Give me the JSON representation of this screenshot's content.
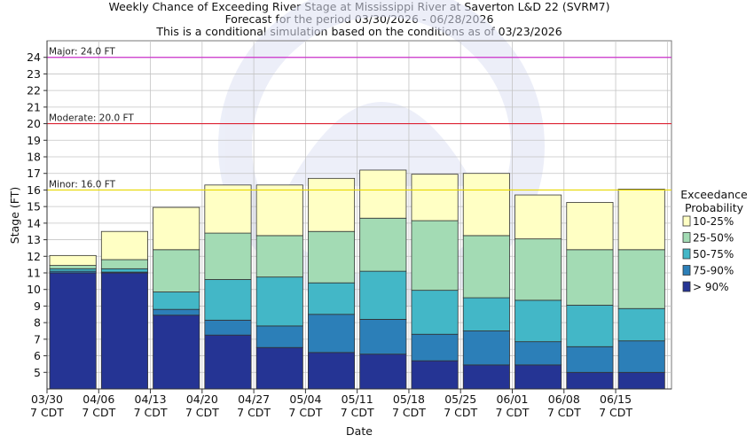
{
  "chart_data": {
    "type": "bar",
    "title": "Weekly Chance of Exceeding River Stage at Mississippi River at Saverton L&D 22 (SVRM7)",
    "subtitle": "Forecast for the period 03/30/2026 - 06/28/2026",
    "subtitle2": "This is a conditional simulation based on the conditions as of 03/23/2026",
    "xlabel": "Date",
    "ylabel": "Stage (FT)",
    "ylim": [
      4,
      25
    ],
    "yticks": [
      5,
      6,
      7,
      8,
      9,
      10,
      11,
      12,
      13,
      14,
      15,
      16,
      17,
      18,
      19,
      20,
      21,
      22,
      23,
      24
    ],
    "xtick_labels": [
      {
        "date": "03/30",
        "tz": "7 CDT"
      },
      {
        "date": "04/06",
        "tz": "7 CDT"
      },
      {
        "date": "04/13",
        "tz": "7 CDT"
      },
      {
        "date": "04/20",
        "tz": "7 CDT"
      },
      {
        "date": "04/27",
        "tz": "7 CDT"
      },
      {
        "date": "05/04",
        "tz": "7 CDT"
      },
      {
        "date": "05/11",
        "tz": "7 CDT"
      },
      {
        "date": "05/18",
        "tz": "7 CDT"
      },
      {
        "date": "05/25",
        "tz": "7 CDT"
      },
      {
        "date": "06/01",
        "tz": "7 CDT"
      },
      {
        "date": "06/08",
        "tz": "7 CDT"
      },
      {
        "date": "06/15",
        "tz": "7 CDT"
      }
    ],
    "grid": true,
    "flood_stages": [
      {
        "label": "Major: 24.0 FT",
        "value": 24.0,
        "color": "#cc33cc"
      },
      {
        "label": "Moderate: 20.0 FT",
        "value": 20.0,
        "color": "#dd2233"
      },
      {
        "label": "Minor: 16.0 FT",
        "value": 16.0,
        "color": "#e8d800"
      }
    ],
    "legend": {
      "title_line1": "Exceedance",
      "title_line2": "Probability",
      "placement": "right",
      "entries": [
        {
          "label": "10-25%",
          "color": "#ffffc4"
        },
        {
          "label": "25-50%",
          "color": "#a3dbb4"
        },
        {
          "label": "50-75%",
          "color": "#43b7c7"
        },
        {
          "label": "75-90%",
          "color": "#2c7fb8"
        },
        {
          "label": "> 90%",
          "color": "#253494"
        }
      ]
    },
    "weeks": [
      {
        "start": "03/30",
        "stack": [
          11.0,
          11.1,
          11.25,
          11.45,
          12.05
        ]
      },
      {
        "start": "04/06",
        "stack": [
          11.0,
          11.05,
          11.25,
          11.8,
          13.5
        ]
      },
      {
        "start": "04/13",
        "stack": [
          8.45,
          8.8,
          9.85,
          12.4,
          14.95
        ]
      },
      {
        "start": "04/20",
        "stack": [
          7.25,
          8.15,
          10.6,
          13.4,
          16.3
        ]
      },
      {
        "start": "04/27",
        "stack": [
          6.5,
          7.8,
          10.75,
          13.25,
          16.3
        ]
      },
      {
        "start": "05/04",
        "stack": [
          6.2,
          8.5,
          10.4,
          13.5,
          16.7
        ]
      },
      {
        "start": "05/11",
        "stack": [
          6.1,
          8.2,
          11.1,
          14.3,
          17.2
        ]
      },
      {
        "start": "05/18",
        "stack": [
          5.7,
          7.3,
          9.95,
          14.15,
          16.95
        ]
      },
      {
        "start": "05/25",
        "stack": [
          5.45,
          7.5,
          9.5,
          13.25,
          17.0
        ]
      },
      {
        "start": "06/01",
        "stack": [
          5.45,
          6.85,
          9.35,
          13.05,
          15.7
        ]
      },
      {
        "start": "06/08",
        "stack": [
          5.0,
          6.55,
          9.05,
          12.4,
          15.25
        ]
      },
      {
        "start": "06/15",
        "stack": [
          5.0,
          6.9,
          8.85,
          12.4,
          16.05
        ]
      }
    ]
  }
}
